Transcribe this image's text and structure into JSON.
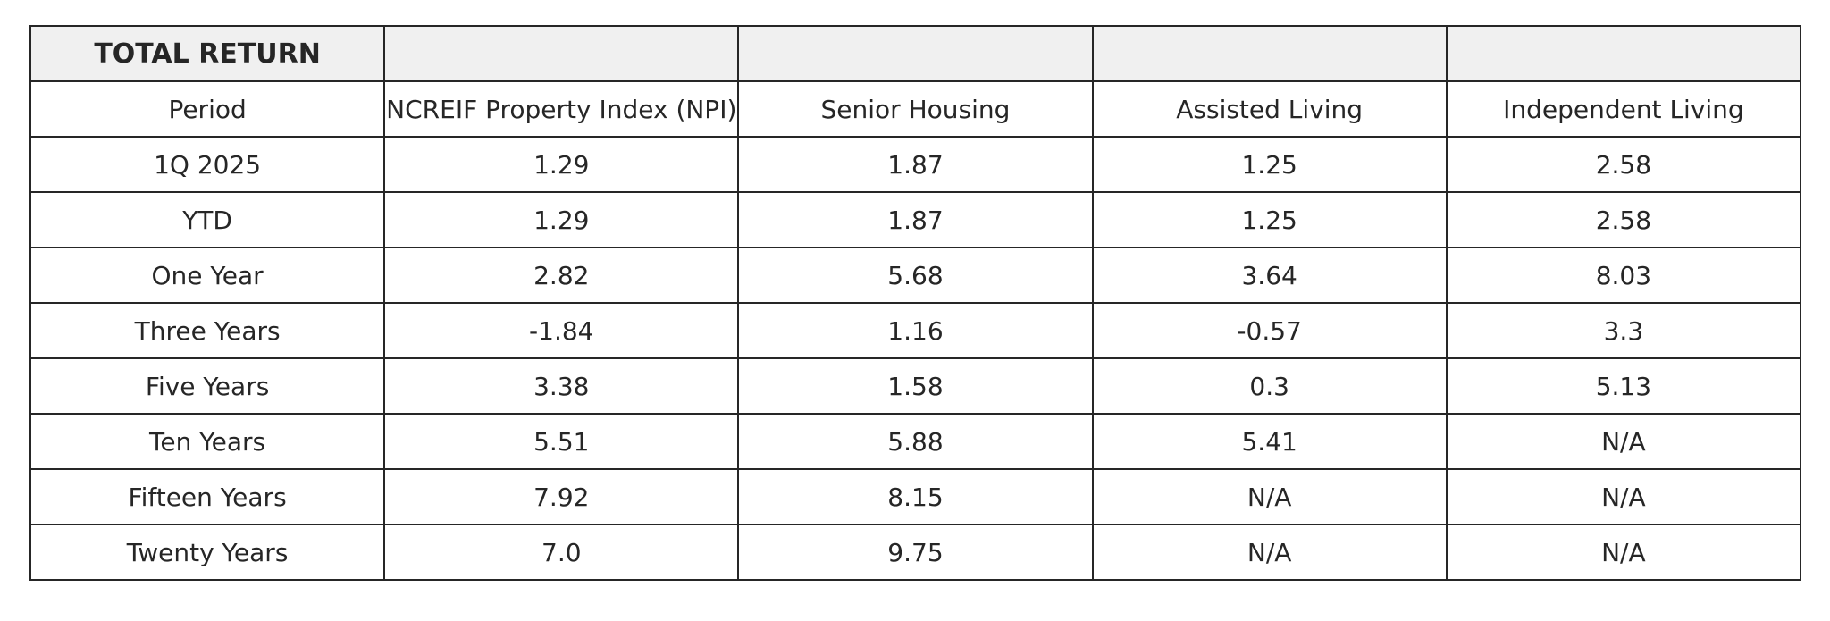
{
  "chart_data": {
    "type": "table",
    "title": "TOTAL RETURN",
    "columns": [
      "Period",
      "NCREIF Property Index (NPI)",
      "Senior Housing",
      "Assisted Living",
      "Independent Living"
    ],
    "rows": [
      [
        "1Q 2025",
        "1.29",
        "1.87",
        "1.25",
        "2.58"
      ],
      [
        "YTD",
        "1.29",
        "1.87",
        "1.25",
        "2.58"
      ],
      [
        "One Year",
        "2.82",
        "5.68",
        "3.64",
        "8.03"
      ],
      [
        "Three Years",
        "-1.84",
        "1.16",
        "-0.57",
        "3.3"
      ],
      [
        "Five Years",
        "3.38",
        "1.58",
        "0.3",
        "5.13"
      ],
      [
        "Ten Years",
        "5.51",
        "5.88",
        "5.41",
        "N/A"
      ],
      [
        "Fifteen Years",
        "7.92",
        "8.15",
        "N/A",
        "N/A"
      ],
      [
        "Twenty Years",
        "7.0",
        "9.75",
        "N/A",
        "N/A"
      ]
    ],
    "colors": {
      "header_fill": "#f0f0f0",
      "border": "#262626",
      "text": "#262626"
    }
  }
}
